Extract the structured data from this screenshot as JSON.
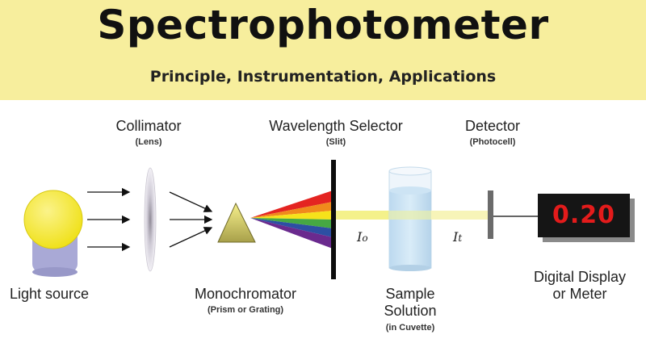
{
  "header": {
    "title": "Spectrophotometer",
    "subtitle": "Principle, Instrumentation, Applications"
  },
  "labels": {
    "collimator": "Collimator",
    "collimator_sub": "(Lens)",
    "wavelength_selector": "Wavelength Selector",
    "wavelength_selector_sub": "(Slit)",
    "detector": "Detector",
    "detector_sub": "(Photocell)",
    "light_source": "Light source",
    "monochromator": "Monochromator",
    "monochromator_sub": "(Prism or Grating)",
    "sample_line1": "Sample",
    "sample_line2": "Solution",
    "sample_sub": "(in Cuvette)",
    "display_line1": "Digital Display",
    "display_line2": "or Meter"
  },
  "symbols": {
    "incident": "Io",
    "transmitted": "It"
  },
  "display": {
    "value": "0.20"
  },
  "colors": {
    "banner": "#f7ee9d",
    "lamp": "#f2e21a",
    "lamp_base": "#a9a9d6",
    "beam": "#f4f18a",
    "display_bg": "#151515",
    "display_text": "#e31b1b",
    "spectrum": [
      "#e42421",
      "#f08a1c",
      "#f6e21a",
      "#46a843",
      "#2d4fa3",
      "#6a2a8e"
    ]
  }
}
